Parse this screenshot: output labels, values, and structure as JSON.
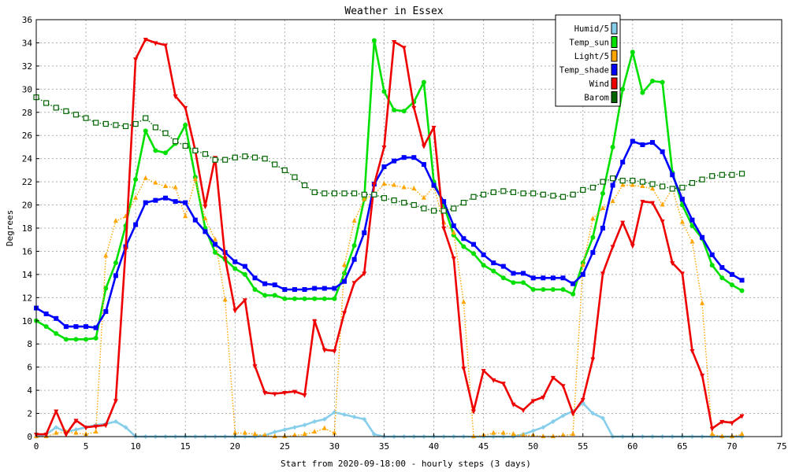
{
  "chart_data": {
    "type": "line",
    "title": "Weather in Essex",
    "xlabel": "Start from 2020-09-18:00 - hourly steps (3 days)",
    "ylabel": "Degrees",
    "xlim": [
      0,
      75
    ],
    "ylim": [
      0,
      36
    ],
    "x_ticks": [
      "0",
      "5",
      "10",
      "15",
      "20",
      "25",
      "30",
      "35",
      "40",
      "45",
      "50",
      "55",
      "60",
      "65",
      "70",
      "75"
    ],
    "y_ticks": [
      "0",
      "2",
      "4",
      "6",
      "8",
      "10",
      "12",
      "14",
      "16",
      "18",
      "20",
      "22",
      "24",
      "26",
      "28",
      "30",
      "32",
      "34",
      "36"
    ],
    "grid": true,
    "legend_position": "top-right",
    "series": [
      {
        "name": "Humid/5",
        "color": "#87ceeb",
        "marker": "diamond",
        "style": "solid",
        "values": [
          0,
          0.2,
          0.8,
          0.4,
          0.6,
          0.8,
          1,
          1.1,
          1.3,
          0.8,
          0,
          0,
          0,
          0,
          0,
          0,
          0,
          0,
          0,
          0,
          0,
          0,
          0,
          0.1,
          0.4,
          0.6,
          0.8,
          1,
          1.3,
          1.5,
          2.1,
          1.9,
          1.7,
          1.5,
          0.2,
          0,
          0,
          0,
          0,
          0,
          0,
          0,
          0,
          0,
          0,
          0,
          0,
          0,
          0,
          0.2,
          0.5,
          0.8,
          1.3,
          1.8,
          2.2,
          2.9,
          2,
          1.6,
          0,
          0,
          0,
          0,
          0,
          0,
          0,
          0,
          0,
          0,
          0,
          0,
          0,
          0
        ]
      },
      {
        "name": "Temp_sun",
        "color": "#00e000",
        "marker": "circle",
        "style": "solid",
        "values": [
          10,
          9.5,
          8.9,
          8.4,
          8.4,
          8.4,
          8.5,
          12.8,
          15,
          18.2,
          22.2,
          26.4,
          24.7,
          24.5,
          25.3,
          26.9,
          22.4,
          18,
          15.9,
          15.3,
          14.5,
          14,
          12.7,
          12.2,
          12.2,
          11.9,
          11.9,
          11.9,
          11.9,
          11.9,
          11.9,
          14.1,
          16.5,
          20.5,
          34.2,
          29.8,
          28.2,
          28.1,
          28.9,
          30.6,
          22,
          20,
          17.4,
          16.4,
          15.8,
          14.8,
          14.3,
          13.7,
          13.3,
          13.3,
          12.7,
          12.7,
          12.7,
          12.7,
          12.3,
          15,
          17.2,
          21,
          25,
          30,
          33.2,
          29.7,
          30.7,
          30.6,
          22.8,
          20,
          18.2,
          17.1,
          14.8,
          13.7,
          13.1,
          12.6
        ]
      },
      {
        "name": "Light/5",
        "color": "#ffa500",
        "marker": "triangle",
        "style": "dotted",
        "values": [
          0,
          0,
          0.3,
          0.4,
          0.3,
          0.2,
          0.4,
          15.6,
          18.6,
          19,
          20.6,
          22.3,
          21.9,
          21.6,
          21.5,
          19,
          22.2,
          18.8,
          17,
          11.8,
          0.3,
          0.3,
          0.2,
          0.1,
          0,
          0,
          0.1,
          0.2,
          0.4,
          0.7,
          0.3,
          14.8,
          18.6,
          20.5,
          20.9,
          21.8,
          21.7,
          21.5,
          21.4,
          20.6,
          21.6,
          18.5,
          17.6,
          11.6,
          0,
          0.1,
          0.3,
          0.3,
          0.2,
          0.1,
          0.1,
          0,
          0,
          0.1,
          0.2,
          14.8,
          18.8,
          19.7,
          20.3,
          21.7,
          21.7,
          21.6,
          21.4,
          20,
          21.4,
          18.5,
          16.8,
          11.5,
          0.2,
          0,
          0,
          0.2
        ]
      },
      {
        "name": "Temp_shade",
        "color": "#0000ff",
        "marker": "square",
        "style": "solid",
        "values": [
          11.1,
          10.6,
          10.2,
          9.5,
          9.5,
          9.5,
          9.4,
          10.8,
          13.9,
          16.4,
          18.3,
          20.2,
          20.4,
          20.6,
          20.3,
          20.2,
          18.7,
          17.7,
          16.6,
          15.9,
          15.1,
          14.7,
          13.7,
          13.2,
          13.1,
          12.7,
          12.7,
          12.7,
          12.8,
          12.8,
          12.8,
          13.4,
          15.3,
          17.6,
          21.8,
          23.3,
          23.8,
          24.1,
          24.1,
          23.5,
          21.7,
          20.3,
          18.2,
          17.1,
          16.6,
          15.7,
          15,
          14.7,
          14.1,
          14.1,
          13.7,
          13.7,
          13.7,
          13.7,
          13.2,
          14,
          15.9,
          18,
          21.7,
          23.7,
          25.5,
          25.2,
          25.4,
          24.6,
          22.6,
          20.5,
          18.7,
          17.2,
          15.7,
          14.6,
          14,
          13.5
        ]
      },
      {
        "name": "Wind",
        "color": "#ee0000",
        "marker": "triangle-down",
        "style": "solid",
        "values": [
          0.2,
          0.2,
          2.2,
          0.2,
          1.4,
          0.8,
          0.9,
          1,
          3.1,
          16.2,
          32.6,
          34.3,
          34,
          33.8,
          29.4,
          28.4,
          24.7,
          19.9,
          24.1,
          15.4,
          10.9,
          11.8,
          6.1,
          3.8,
          3.7,
          3.8,
          3.9,
          3.6,
          10,
          7.5,
          7.4,
          10.7,
          13.3,
          14.1,
          21.8,
          25,
          34.1,
          33.6,
          28.4,
          25.1,
          26.7,
          18,
          15.4,
          5.9,
          2.2,
          5.7,
          4.9,
          4.6,
          2.8,
          2.3,
          3.1,
          3.4,
          5.1,
          4.4,
          2,
          3.2,
          6.7,
          14.1,
          16.4,
          18.5,
          16.5,
          20.3,
          20.2,
          18.6,
          15,
          14.1,
          7.4,
          5.3,
          0.7,
          1.3,
          1.2,
          1.8
        ]
      },
      {
        "name": "Barom",
        "color": "#006400",
        "marker": "open-square",
        "style": "dotted",
        "values": [
          29.3,
          28.8,
          28.4,
          28.1,
          27.8,
          27.5,
          27.1,
          27,
          26.9,
          26.8,
          27,
          27.5,
          26.7,
          26.2,
          25.5,
          25.1,
          24.7,
          24.4,
          23.9,
          23.9,
          24.1,
          24.2,
          24.1,
          24,
          23.5,
          23,
          22.4,
          21.7,
          21.1,
          21,
          21,
          21,
          21,
          20.9,
          20.9,
          20.6,
          20.4,
          20.2,
          20,
          19.7,
          19.5,
          19.5,
          19.7,
          20.2,
          20.7,
          20.9,
          21.1,
          21.2,
          21.1,
          21,
          21,
          20.9,
          20.8,
          20.7,
          20.9,
          21.3,
          21.5,
          22,
          22.3,
          22.1,
          22.1,
          22,
          21.8,
          21.6,
          21.4,
          21.5,
          21.9,
          22.2,
          22.5,
          22.6,
          22.6,
          22.7
        ]
      }
    ]
  }
}
